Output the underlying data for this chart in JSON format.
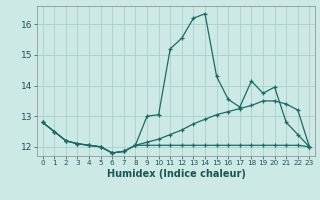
{
  "title": "",
  "xlabel": "Humidex (Indice chaleur)",
  "ylabel": "",
  "background_color": "#cce9e5",
  "grid_color": "#aacfcb",
  "line_color": "#1a6b65",
  "xlim": [
    -0.5,
    23.5
  ],
  "ylim": [
    11.7,
    16.6
  ],
  "yticks": [
    12,
    13,
    14,
    15,
    16
  ],
  "xticks": [
    0,
    1,
    2,
    3,
    4,
    5,
    6,
    7,
    8,
    9,
    10,
    11,
    12,
    13,
    14,
    15,
    16,
    17,
    18,
    19,
    20,
    21,
    22,
    23
  ],
  "series1": [
    12.8,
    12.5,
    12.2,
    12.1,
    12.05,
    12.0,
    11.8,
    11.85,
    12.05,
    13.0,
    13.05,
    15.2,
    15.55,
    16.2,
    16.35,
    14.3,
    13.55,
    13.3,
    14.15,
    13.75,
    13.95,
    12.8,
    12.4,
    12.0
  ],
  "series2": [
    12.8,
    12.5,
    12.2,
    12.1,
    12.05,
    12.0,
    11.8,
    11.85,
    12.05,
    12.05,
    12.05,
    12.05,
    12.05,
    12.05,
    12.05,
    12.05,
    12.05,
    12.05,
    12.05,
    12.05,
    12.05,
    12.05,
    12.05,
    12.0
  ],
  "series3": [
    12.8,
    12.5,
    12.2,
    12.1,
    12.05,
    12.0,
    11.8,
    11.85,
    12.05,
    12.15,
    12.25,
    12.4,
    12.55,
    12.75,
    12.9,
    13.05,
    13.15,
    13.25,
    13.35,
    13.5,
    13.5,
    13.4,
    13.2,
    12.0
  ]
}
